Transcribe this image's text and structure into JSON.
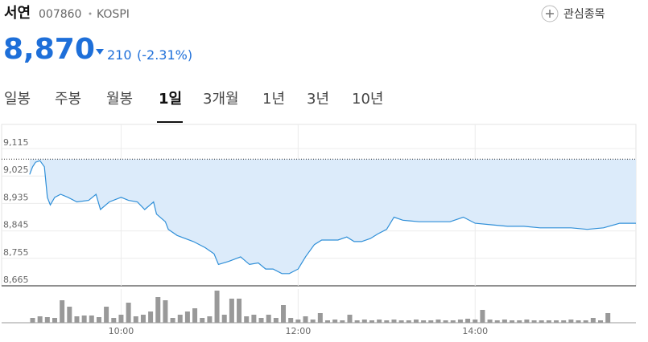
{
  "header": {
    "name": "서연",
    "code": "007860",
    "market": "KOSPI",
    "watchlist": "관심종목",
    "price": "8,870",
    "change": "210",
    "change_pct": "(-2.31%)"
  },
  "tabs": {
    "items": [
      "일봉",
      "주봉",
      "월봉",
      "1일",
      "3개월",
      "1년",
      "3년",
      "10년"
    ],
    "active": 3
  },
  "chart_data": {
    "type": "line",
    "color": "#2f8fd8",
    "area_color": "#dcebfa",
    "reference_line": 9080,
    "grid": true,
    "x": [
      538,
      540,
      542,
      545,
      548,
      550,
      552,
      555,
      559,
      564,
      570,
      578,
      583,
      586,
      592,
      600,
      605,
      611,
      616,
      622,
      624,
      630,
      632,
      638,
      649,
      657,
      663,
      666,
      673,
      681,
      687,
      693,
      698,
      703,
      709,
      714,
      720,
      725,
      731,
      736,
      747,
      753,
      758,
      763,
      769,
      774,
      780,
      785,
      791,
      802,
      813,
      823,
      832,
      840,
      851,
      862,
      873,
      884,
      894,
      905,
      916,
      927,
      938,
      949
    ],
    "values": [
      9030,
      9055,
      9070,
      9075,
      9055,
      8955,
      8930,
      8955,
      8965,
      8955,
      8940,
      8945,
      8965,
      8915,
      8940,
      8955,
      8945,
      8940,
      8915,
      8940,
      8900,
      8875,
      8850,
      8830,
      8810,
      8790,
      8770,
      8735,
      8745,
      8760,
      8735,
      8740,
      8720,
      8720,
      8705,
      8705,
      8720,
      8760,
      8800,
      8815,
      8815,
      8825,
      8810,
      8810,
      8820,
      8835,
      8850,
      8890,
      8880,
      8875,
      8875,
      8875,
      8890,
      8870,
      8865,
      8860,
      8860,
      8855,
      8855,
      8855,
      8850,
      8855,
      8870,
      8870
    ],
    "xlim": [
      537,
      949
    ],
    "xticks": [
      {
        "value": 600,
        "label": "10:00"
      },
      {
        "value": 720,
        "label": "12:00"
      },
      {
        "value": 840,
        "label": "14:00"
      }
    ],
    "ylim": [
      8665,
      9115
    ],
    "yticks": [
      {
        "value": 9115,
        "label": "9,115"
      },
      {
        "value": 9025,
        "label": "9,025"
      },
      {
        "value": 8935,
        "label": "8,935"
      },
      {
        "value": 8845,
        "label": "8,845"
      },
      {
        "value": 8755,
        "label": "8,755"
      },
      {
        "value": 8665,
        "label": "8,665"
      }
    ],
    "volume": {
      "type": "bar",
      "color": "#999999",
      "ylim": [
        0,
        42
      ],
      "x": [
        540,
        545,
        550,
        555,
        560,
        565,
        570,
        575,
        580,
        585,
        590,
        595,
        600,
        605,
        610,
        615,
        620,
        625,
        630,
        635,
        640,
        645,
        650,
        655,
        660,
        665,
        670,
        675,
        680,
        685,
        690,
        695,
        700,
        705,
        710,
        715,
        720,
        725,
        730,
        735,
        740,
        745,
        750,
        755,
        760,
        765,
        770,
        775,
        780,
        785,
        790,
        795,
        800,
        805,
        810,
        815,
        820,
        825,
        830,
        835,
        840,
        845,
        850,
        855,
        860,
        865,
        870,
        875,
        880,
        885,
        890,
        895,
        900,
        905,
        910,
        915,
        920,
        925,
        930
      ],
      "values": [
        6,
        8,
        7,
        6,
        28,
        20,
        8,
        9,
        9,
        7,
        20,
        6,
        10,
        25,
        8,
        10,
        14,
        32,
        28,
        6,
        10,
        14,
        18,
        6,
        8,
        40,
        10,
        30,
        30,
        8,
        10,
        6,
        10,
        6,
        22,
        6,
        4,
        8,
        4,
        12,
        3,
        4,
        3,
        10,
        3,
        4,
        3,
        4,
        3,
        4,
        3,
        3,
        4,
        3,
        3,
        4,
        3,
        3,
        4,
        5,
        4,
        16,
        4,
        3,
        4,
        3,
        3,
        4,
        3,
        3,
        3,
        3,
        3,
        4,
        3,
        3,
        6,
        3,
        12
      ]
    }
  }
}
